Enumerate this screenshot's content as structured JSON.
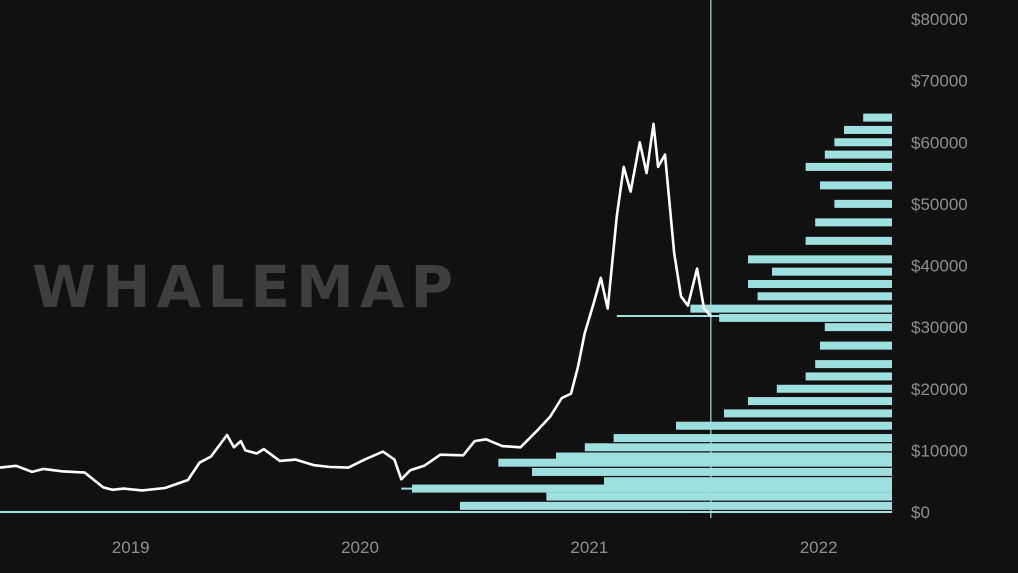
{
  "watermark": "WHALEMAP",
  "colors": {
    "background": "#121112",
    "price_line": "#ffffff",
    "volume_profile": "#9ee0e0",
    "tick_text": "#8e8e8e",
    "watermark": "#3e3e3e"
  },
  "chart_data": {
    "type": "line",
    "title": "",
    "xlabel": "",
    "ylabel": "",
    "x_ticks": [
      "2019",
      "2020",
      "2021",
      "2022"
    ],
    "x_tick_years": [
      2019.0,
      2020.0,
      2021.0,
      2022.0
    ],
    "xlim": [
      2018.43,
      2022.32
    ],
    "y_ticks": [
      "$0",
      "$10000",
      "$20000",
      "$30000",
      "$40000",
      "$50000",
      "$60000",
      "$70000",
      "$80000"
    ],
    "y_tick_values": [
      0,
      10000,
      20000,
      30000,
      40000,
      50000,
      60000,
      70000,
      80000
    ],
    "ylim": [
      0,
      80000
    ],
    "y_axis_position": "right",
    "grid": false,
    "cursor_line_year": 2021.53,
    "series": [
      {
        "type": "line",
        "x": [
          2018.43,
          2018.5,
          2018.57,
          2018.62,
          2018.7,
          2018.8,
          2018.88,
          2018.92,
          2018.97,
          2019.05,
          2019.15,
          2019.25,
          2019.3,
          2019.35,
          2019.42,
          2019.45,
          2019.48,
          2019.5,
          2019.55,
          2019.58,
          2019.65,
          2019.72,
          2019.8,
          2019.87,
          2019.95,
          2020.02,
          2020.1,
          2020.15,
          2020.18,
          2020.22,
          2020.28,
          2020.35,
          2020.45,
          2020.5,
          2020.55,
          2020.62,
          2020.7,
          2020.78,
          2020.83,
          2020.88,
          2020.92,
          2020.95,
          2020.98,
          2021.02,
          2021.05,
          2021.08,
          2021.12,
          2021.15,
          2021.18,
          2021.22,
          2021.25,
          2021.28,
          2021.3,
          2021.33,
          2021.37,
          2021.4,
          2021.43,
          2021.47,
          2021.5,
          2021.53
        ],
        "y": [
          7200,
          7500,
          6500,
          7000,
          6600,
          6400,
          4000,
          3600,
          3800,
          3500,
          3900,
          5200,
          8000,
          9000,
          12500,
          10500,
          11500,
          10000,
          9500,
          10200,
          8300,
          8500,
          7600,
          7300,
          7200,
          8500,
          9800,
          8500,
          5300,
          6800,
          7500,
          9300,
          9200,
          11500,
          11800,
          10700,
          10500,
          13500,
          15500,
          18500,
          19200,
          23500,
          29000,
          34000,
          38000,
          33000,
          48000,
          56000,
          52000,
          60000,
          55000,
          63000,
          56000,
          58000,
          42000,
          35000,
          33500,
          39500,
          33000,
          31800
        ]
      }
    ],
    "volume_profile": {
      "price_levels": [
        1000,
        2500,
        3800,
        5000,
        6500,
        8000,
        9000,
        10500,
        12000,
        14000,
        16000,
        18000,
        20000,
        22000,
        24000,
        27000,
        30000,
        31500,
        33000,
        35000,
        37000,
        39000,
        41000,
        44000,
        47000,
        50000,
        53000,
        56000,
        58000,
        60000,
        62000,
        64000
      ],
      "volume_fraction": [
        0.9,
        0.72,
        1.0,
        0.6,
        0.75,
        0.82,
        0.7,
        0.64,
        0.58,
        0.45,
        0.35,
        0.3,
        0.24,
        0.18,
        0.16,
        0.15,
        0.14,
        0.36,
        0.42,
        0.28,
        0.3,
        0.25,
        0.3,
        0.18,
        0.16,
        0.12,
        0.15,
        0.18,
        0.14,
        0.12,
        0.1,
        0.06
      ]
    },
    "horizontal_levels": [
      {
        "value": 0,
        "x_start_year": 2018.43
      },
      {
        "value": 3800,
        "x_start_year": 2020.18
      },
      {
        "value": 31800,
        "x_start_year": 2021.12
      }
    ]
  }
}
